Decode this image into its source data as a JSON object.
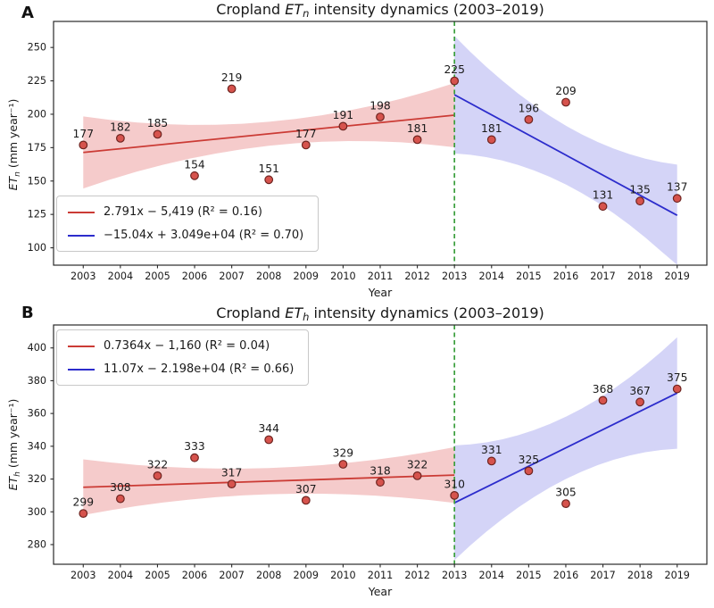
{
  "figure": {
    "background": "#ffffff",
    "panel_letters": [
      "A",
      "B"
    ]
  },
  "chart_data": [
    {
      "type": "scatter",
      "panel": "A",
      "title": "Cropland ETₙ intensity dynamics (2003–2019)",
      "title_parts": {
        "pre": "Cropland ",
        "sym": "ET",
        "sub": "n",
        "post": " intensity dynamics (2003–2019)"
      },
      "xlabel": "Year",
      "ylabel": "ETₙ (mm year⁻¹)",
      "ylabel_parts": {
        "sym": "ET",
        "sub": "n",
        "unit": " (mm year⁻¹)"
      },
      "x": [
        2003,
        2004,
        2005,
        2006,
        2007,
        2008,
        2009,
        2010,
        2011,
        2012,
        2013,
        2014,
        2015,
        2016,
        2017,
        2018,
        2019
      ],
      "y": [
        177,
        182,
        185,
        154,
        219,
        151,
        177,
        191,
        198,
        181,
        225,
        181,
        196,
        209,
        131,
        135,
        137
      ],
      "xticks": [
        2003,
        2004,
        2005,
        2006,
        2007,
        2008,
        2009,
        2010,
        2011,
        2012,
        2013,
        2014,
        2015,
        2016,
        2017,
        2018,
        2019
      ],
      "yticks": [
        100,
        125,
        150,
        175,
        200,
        225,
        250
      ],
      "xlim": [
        2002.2,
        2019.8
      ],
      "ylim": [
        87,
        269.5
      ],
      "grid": false,
      "break_x": 2013,
      "break_line_color": "#3a9e3c",
      "marker": {
        "fill": "#d6534d",
        "edge": "#6e2420"
      },
      "legend_position": "lower left",
      "trends": [
        {
          "name": "ols-2003-2013",
          "label": "2.791x − 5,419 (R² = 0.16)",
          "color": "#cb3b35",
          "band_fill": "rgba(220,70,70,0.28)",
          "x0": 2003,
          "y0": 171.4,
          "x1": 2013,
          "y1": 199.3,
          "band_x": [
            2003,
            2008,
            2013
          ],
          "band_halfwidth": [
            27,
            9,
            24
          ]
        },
        {
          "name": "ols-2013-2019",
          "label": "−15.04x + 3.049e+04 (R² = 0.70)",
          "color": "#2c2ccc",
          "band_fill": "rgba(100,100,228,0.28)",
          "x0": 2013,
          "y0": 214.6,
          "x1": 2019,
          "y1": 124.3,
          "band_x": [
            2013,
            2016,
            2019
          ],
          "band_halfwidth": [
            44,
            22,
            38
          ]
        }
      ]
    },
    {
      "type": "scatter",
      "panel": "B",
      "title": "Cropland ETₕ intensity dynamics (2003–2019)",
      "title_parts": {
        "pre": "Cropland ",
        "sym": "ET",
        "sub": "h",
        "post": " intensity dynamics (2003–2019)"
      },
      "xlabel": "Year",
      "ylabel": "ETₕ (mm year⁻¹)",
      "ylabel_parts": {
        "sym": "ET",
        "sub": "h",
        "unit": " (mm year⁻¹)"
      },
      "x": [
        2003,
        2004,
        2005,
        2006,
        2007,
        2008,
        2009,
        2010,
        2011,
        2012,
        2013,
        2014,
        2015,
        2016,
        2017,
        2018,
        2019
      ],
      "y": [
        299,
        308,
        322,
        333,
        317,
        344,
        307,
        329,
        318,
        322,
        310,
        331,
        325,
        305,
        368,
        367,
        375
      ],
      "xticks": [
        2003,
        2004,
        2005,
        2006,
        2007,
        2008,
        2009,
        2010,
        2011,
        2012,
        2013,
        2014,
        2015,
        2016,
        2017,
        2018,
        2019
      ],
      "yticks": [
        280,
        300,
        320,
        340,
        360,
        380,
        400
      ],
      "xlim": [
        2002.2,
        2019.8
      ],
      "ylim": [
        268,
        414
      ],
      "grid": false,
      "break_x": 2013,
      "break_line_color": "#3a9e3c",
      "marker": {
        "fill": "#d6534d",
        "edge": "#6e2420"
      },
      "legend_position": "upper left",
      "trends": [
        {
          "name": "ols-2003-2013",
          "label": "0.7364x − 1,160 (R² = 0.04)",
          "color": "#cb3b35",
          "band_fill": "rgba(220,70,70,0.28)",
          "x0": 2003,
          "y0": 315.0,
          "x1": 2013,
          "y1": 322.4,
          "band_x": [
            2003,
            2008,
            2013
          ],
          "band_halfwidth": [
            17,
            8,
            17
          ]
        },
        {
          "name": "ols-2013-2019",
          "label": "11.07x − 2.198e+04 (R² = 0.66)",
          "color": "#2c2ccc",
          "band_fill": "rgba(100,100,228,0.28)",
          "x0": 2013,
          "y0": 305.5,
          "x1": 2019,
          "y1": 372.5,
          "band_x": [
            2013,
            2016,
            2019
          ],
          "band_halfwidth": [
            35,
            19,
            34
          ]
        }
      ]
    }
  ]
}
